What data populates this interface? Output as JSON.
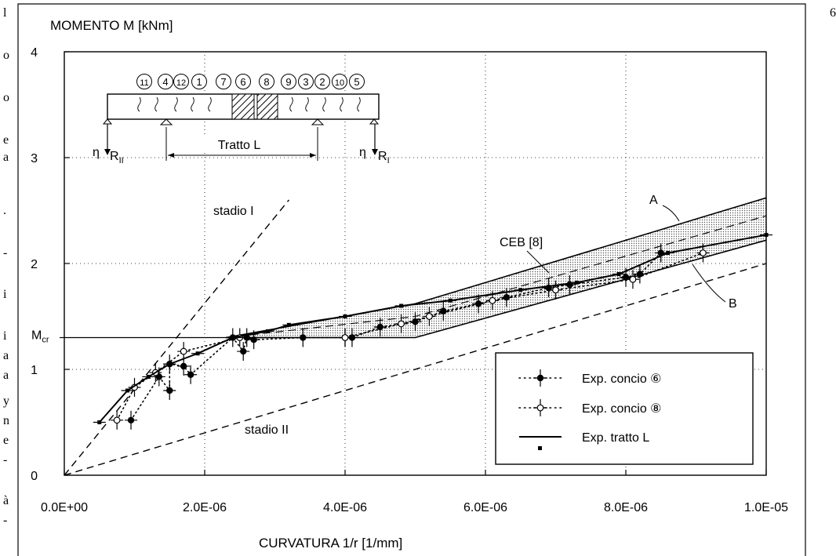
{
  "page": {
    "left_margin_text": [
      "l",
      "o",
      "o",
      "e",
      "a",
      ".",
      "-",
      "i",
      "i",
      "a",
      "a",
      "y",
      "n",
      "e",
      "-",
      "à",
      "-"
    ],
    "page_number": "6"
  },
  "chart_data": {
    "type": "line",
    "ylabel": "MOMENTO M [kNm]",
    "xlabel": "CURVATURA 1/r [1/mm]",
    "xlim": [
      0,
      1e-05
    ],
    "ylim": [
      0,
      4
    ],
    "x_ticks": [
      0,
      2e-06,
      4e-06,
      6e-06,
      8e-06,
      1e-05
    ],
    "x_tick_labels": [
      "0.0E+00",
      "2.0E-06",
      "4.0E-06",
      "6.0E-06",
      "8.0E-06",
      "1.0E-05"
    ],
    "y_ticks": [
      0,
      1,
      2,
      3,
      4
    ],
    "y_tick_labels": [
      "0",
      "1",
      "2",
      "3",
      "4"
    ],
    "grid": "dotted",
    "mcr": {
      "label": "M",
      "sub": "cr",
      "value": 1.3
    },
    "reference_lines": [
      {
        "label": "stadio I",
        "x": [
          0,
          3.2e-06
        ],
        "y": [
          0,
          2.6
        ],
        "style": "dashed"
      },
      {
        "label": "stadio II",
        "x": [
          0,
          1e-05
        ],
        "y": [
          0,
          2.0
        ],
        "style": "dashed"
      }
    ],
    "ceb_band": {
      "label": "CEB [8]",
      "upper_label": "A",
      "lower_label": "B",
      "upper": {
        "x": [
          2.3e-06,
          5e-06,
          1e-05
        ],
        "y": [
          1.3,
          1.62,
          2.62
        ]
      },
      "lower": {
        "x": [
          2.3e-06,
          5e-06,
          1e-05
        ],
        "y": [
          1.3,
          1.3,
          2.22
        ]
      },
      "mean": {
        "x": [
          2.3e-06,
          5e-06,
          1e-05
        ],
        "y": [
          1.3,
          1.5,
          2.45
        ]
      }
    },
    "series": [
      {
        "name": "Exp. concio ⑥",
        "marker": "filled-circle",
        "style": "dotted",
        "x": [
          9.5e-07,
          1.35e-06,
          1.5e-06,
          1.5e-06,
          1.7e-06,
          1.8e-06,
          2.4e-06,
          2.55e-06,
          2.6e-06,
          2.7e-06,
          3.4e-06,
          4e-06,
          4.1e-06,
          4.5e-06,
          5e-06,
          5.4e-06,
          5.9e-06,
          6.3e-06,
          6.9e-06,
          7.2e-06,
          8e-06,
          8.2e-06,
          8.5e-06
        ],
        "y": [
          0.52,
          0.93,
          0.8,
          1.05,
          1.03,
          0.95,
          1.3,
          1.17,
          1.3,
          1.28,
          1.3,
          1.3,
          1.3,
          1.4,
          1.45,
          1.55,
          1.62,
          1.68,
          1.77,
          1.8,
          1.87,
          1.9,
          2.1
        ]
      },
      {
        "name": "Exp. concio ⑧",
        "marker": "open-circle",
        "style": "dotted",
        "x": [
          7.5e-07,
          1e-06,
          1.3e-06,
          1.7e-06,
          2.5e-06,
          4e-06,
          4.8e-06,
          5.2e-06,
          6.1e-06,
          7e-06,
          8.1e-06,
          9.1e-06
        ],
        "y": [
          0.52,
          0.83,
          0.97,
          1.17,
          1.3,
          1.3,
          1.43,
          1.5,
          1.65,
          1.75,
          1.85,
          2.1
        ]
      },
      {
        "name": "Exp. tratto L",
        "marker": "filled-square",
        "style": "solid",
        "x": [
          5e-07,
          9e-07,
          1.2e-06,
          1.5e-06,
          1.9e-06,
          2.4e-06,
          2.9e-06,
          3.2e-06,
          4e-06,
          4.8e-06,
          5.5e-06,
          6.5e-06,
          7.3e-06,
          7.9e-06,
          8.6e-06,
          1e-05
        ],
        "y": [
          0.5,
          0.8,
          0.93,
          1.05,
          1.15,
          1.3,
          1.36,
          1.42,
          1.5,
          1.6,
          1.65,
          1.75,
          1.82,
          1.9,
          2.1,
          2.27
        ]
      }
    ],
    "inset": {
      "segment_numbers": [
        "11",
        "4",
        "12",
        "1",
        "7",
        "6",
        "8",
        "9",
        "3",
        "2",
        "10",
        "5"
      ],
      "left_reaction": {
        "eta": "η",
        "label": "R",
        "sub": "II"
      },
      "right_reaction": {
        "eta": "η",
        "label": "R",
        "sub": "I"
      },
      "span_label": "Tratto L"
    },
    "legend": {
      "placement": "bottom-right"
    },
    "colors": {
      "ink": "#000000",
      "band": "#dcdcdc",
      "background": "#ffffff"
    }
  }
}
